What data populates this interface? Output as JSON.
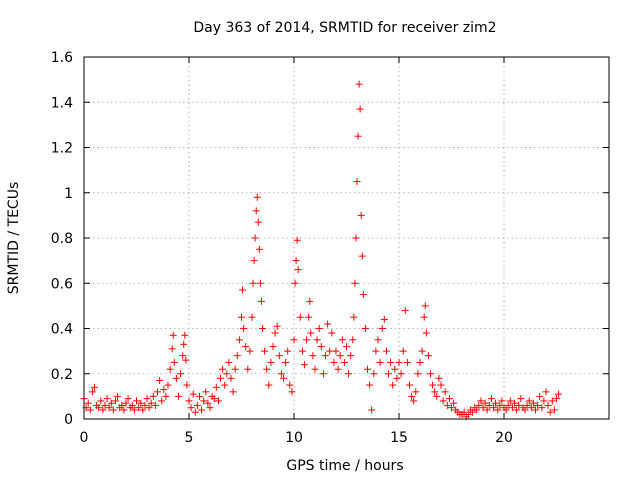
{
  "chart_data": {
    "type": "scatter",
    "title": "Day 363 of 2014, SRMTID for receiver zim2",
    "xlabel": "GPS time / hours",
    "ylabel": "SRMTID / TECUs",
    "xlim": [
      0,
      25
    ],
    "ylim": [
      0,
      1.6
    ],
    "xticks": [
      0,
      5,
      10,
      15,
      20
    ],
    "xtick_labels": [
      "0",
      "5",
      "10",
      "15",
      "20"
    ],
    "yticks": [
      0,
      0.2,
      0.4,
      0.6,
      0.8,
      1.0,
      1.2,
      1.4,
      1.6
    ],
    "ytick_labels": [
      "0",
      "0.2",
      "0.4",
      "0.6",
      "0.8",
      "1",
      "1.2",
      "1.4",
      "1.6"
    ],
    "grid": true,
    "marker": "+",
    "color": "#ff0000",
    "series": [
      {
        "name": "zim2",
        "points": [
          [
            0.0,
            0.09
          ],
          [
            0.1,
            0.05
          ],
          [
            0.2,
            0.07
          ],
          [
            0.3,
            0.04
          ],
          [
            0.4,
            0.12
          ],
          [
            0.5,
            0.14
          ],
          [
            0.6,
            0.06
          ],
          [
            0.7,
            0.05
          ],
          [
            0.8,
            0.08
          ],
          [
            0.9,
            0.04
          ],
          [
            1.0,
            0.06
          ],
          [
            1.1,
            0.09
          ],
          [
            1.2,
            0.05
          ],
          [
            1.3,
            0.07
          ],
          [
            1.4,
            0.04
          ],
          [
            1.5,
            0.08
          ],
          [
            1.6,
            0.1
          ],
          [
            1.7,
            0.05
          ],
          [
            1.8,
            0.06
          ],
          [
            1.9,
            0.04
          ],
          [
            2.0,
            0.07
          ],
          [
            2.1,
            0.09
          ],
          [
            2.2,
            0.05
          ],
          [
            2.3,
            0.06
          ],
          [
            2.4,
            0.04
          ],
          [
            2.5,
            0.08
          ],
          [
            2.6,
            0.05
          ],
          [
            2.7,
            0.07
          ],
          [
            2.8,
            0.04
          ],
          [
            2.9,
            0.06
          ],
          [
            3.0,
            0.09
          ],
          [
            3.1,
            0.05
          ],
          [
            3.2,
            0.07
          ],
          [
            3.3,
            0.1
          ],
          [
            3.4,
            0.06
          ],
          [
            3.5,
            0.12
          ],
          [
            3.6,
            0.17
          ],
          [
            3.7,
            0.08
          ],
          [
            3.8,
            0.13
          ],
          [
            3.9,
            0.1
          ],
          [
            4.0,
            0.15
          ],
          [
            4.1,
            0.22
          ],
          [
            4.2,
            0.31
          ],
          [
            4.25,
            0.37
          ],
          [
            4.3,
            0.25
          ],
          [
            4.4,
            0.18
          ],
          [
            4.5,
            0.1
          ],
          [
            4.6,
            0.2
          ],
          [
            4.7,
            0.28
          ],
          [
            4.75,
            0.33
          ],
          [
            4.8,
            0.37
          ],
          [
            4.85,
            0.26
          ],
          [
            4.9,
            0.15
          ],
          [
            5.0,
            0.08
          ],
          [
            5.1,
            0.05
          ],
          [
            5.2,
            0.11
          ],
          [
            5.3,
            0.03
          ],
          [
            5.4,
            0.06
          ],
          [
            5.5,
            0.1
          ],
          [
            5.6,
            0.04
          ],
          [
            5.7,
            0.08
          ],
          [
            5.8,
            0.12
          ],
          [
            5.9,
            0.07
          ],
          [
            6.0,
            0.05
          ],
          [
            6.1,
            0.1
          ],
          [
            6.2,
            0.09
          ],
          [
            6.3,
            0.14
          ],
          [
            6.4,
            0.08
          ],
          [
            6.5,
            0.18
          ],
          [
            6.6,
            0.22
          ],
          [
            6.7,
            0.15
          ],
          [
            6.8,
            0.2
          ],
          [
            6.9,
            0.25
          ],
          [
            7.0,
            0.18
          ],
          [
            7.1,
            0.12
          ],
          [
            7.2,
            0.22
          ],
          [
            7.3,
            0.28
          ],
          [
            7.4,
            0.35
          ],
          [
            7.5,
            0.45
          ],
          [
            7.55,
            0.57
          ],
          [
            7.6,
            0.4
          ],
          [
            7.7,
            0.32
          ],
          [
            7.8,
            0.22
          ],
          [
            7.9,
            0.3
          ],
          [
            8.0,
            0.45
          ],
          [
            8.05,
            0.6
          ],
          [
            8.1,
            0.7
          ],
          [
            8.15,
            0.8
          ],
          [
            8.2,
            0.92
          ],
          [
            8.25,
            0.98
          ],
          [
            8.3,
            0.87
          ],
          [
            8.35,
            0.75
          ],
          [
            8.4,
            0.6
          ],
          [
            8.45,
            0.52
          ],
          [
            8.5,
            0.4
          ],
          [
            8.6,
            0.3
          ],
          [
            8.7,
            0.22
          ],
          [
            8.8,
            0.15
          ],
          [
            8.9,
            0.25
          ],
          [
            9.0,
            0.32
          ],
          [
            9.1,
            0.38
          ],
          [
            9.2,
            0.41
          ],
          [
            9.3,
            0.28
          ],
          [
            9.4,
            0.2
          ],
          [
            9.5,
            0.18
          ],
          [
            9.6,
            0.25
          ],
          [
            9.7,
            0.3
          ],
          [
            9.8,
            0.15
          ],
          [
            9.9,
            0.12
          ],
          [
            10.0,
            0.35
          ],
          [
            10.05,
            0.6
          ],
          [
            10.1,
            0.7
          ],
          [
            10.15,
            0.79
          ],
          [
            10.2,
            0.66
          ],
          [
            10.3,
            0.45
          ],
          [
            10.4,
            0.3
          ],
          [
            10.5,
            0.24
          ],
          [
            10.6,
            0.35
          ],
          [
            10.7,
            0.45
          ],
          [
            10.75,
            0.52
          ],
          [
            10.8,
            0.38
          ],
          [
            10.9,
            0.28
          ],
          [
            11.0,
            0.22
          ],
          [
            11.1,
            0.35
          ],
          [
            11.2,
            0.4
          ],
          [
            11.3,
            0.32
          ],
          [
            11.4,
            0.2
          ],
          [
            11.5,
            0.28
          ],
          [
            11.6,
            0.42
          ],
          [
            11.7,
            0.3
          ],
          [
            11.8,
            0.38
          ],
          [
            11.9,
            0.25
          ],
          [
            12.0,
            0.3
          ],
          [
            12.1,
            0.22
          ],
          [
            12.2,
            0.28
          ],
          [
            12.3,
            0.35
          ],
          [
            12.4,
            0.25
          ],
          [
            12.5,
            0.32
          ],
          [
            12.6,
            0.2
          ],
          [
            12.7,
            0.28
          ],
          [
            12.8,
            0.35
          ],
          [
            12.85,
            0.45
          ],
          [
            12.9,
            0.6
          ],
          [
            12.95,
            0.8
          ],
          [
            13.0,
            1.05
          ],
          [
            13.05,
            1.25
          ],
          [
            13.1,
            1.48
          ],
          [
            13.15,
            1.37
          ],
          [
            13.2,
            0.9
          ],
          [
            13.25,
            0.72
          ],
          [
            13.3,
            0.55
          ],
          [
            13.4,
            0.4
          ],
          [
            13.5,
            0.22
          ],
          [
            13.6,
            0.15
          ],
          [
            13.7,
            0.04
          ],
          [
            13.8,
            0.2
          ],
          [
            13.9,
            0.3
          ],
          [
            14.0,
            0.35
          ],
          [
            14.1,
            0.25
          ],
          [
            14.2,
            0.4
          ],
          [
            14.3,
            0.44
          ],
          [
            14.4,
            0.3
          ],
          [
            14.5,
            0.2
          ],
          [
            14.6,
            0.25
          ],
          [
            14.7,
            0.15
          ],
          [
            14.8,
            0.22
          ],
          [
            14.9,
            0.18
          ],
          [
            15.0,
            0.25
          ],
          [
            15.1,
            0.2
          ],
          [
            15.2,
            0.3
          ],
          [
            15.3,
            0.48
          ],
          [
            15.4,
            0.25
          ],
          [
            15.5,
            0.15
          ],
          [
            15.6,
            0.1
          ],
          [
            15.7,
            0.08
          ],
          [
            15.8,
            0.12
          ],
          [
            15.9,
            0.2
          ],
          [
            16.0,
            0.25
          ],
          [
            16.1,
            0.3
          ],
          [
            16.2,
            0.45
          ],
          [
            16.25,
            0.5
          ],
          [
            16.3,
            0.38
          ],
          [
            16.4,
            0.28
          ],
          [
            16.5,
            0.2
          ],
          [
            16.6,
            0.15
          ],
          [
            16.7,
            0.12
          ],
          [
            16.8,
            0.1
          ],
          [
            16.9,
            0.18
          ],
          [
            17.0,
            0.15
          ],
          [
            17.1,
            0.08
          ],
          [
            17.2,
            0.12
          ],
          [
            17.3,
            0.06
          ],
          [
            17.4,
            0.09
          ],
          [
            17.5,
            0.05
          ],
          [
            17.6,
            0.07
          ],
          [
            17.7,
            0.04
          ],
          [
            17.8,
            0.03
          ],
          [
            17.9,
            0.02
          ],
          [
            18.0,
            0.02
          ],
          [
            18.1,
            0.03
          ],
          [
            18.2,
            0.01
          ],
          [
            18.3,
            0.02
          ],
          [
            18.4,
            0.04
          ],
          [
            18.5,
            0.03
          ],
          [
            18.6,
            0.05
          ],
          [
            18.7,
            0.04
          ],
          [
            18.8,
            0.06
          ],
          [
            18.9,
            0.08
          ],
          [
            19.0,
            0.05
          ],
          [
            19.1,
            0.07
          ],
          [
            19.2,
            0.04
          ],
          [
            19.3,
            0.06
          ],
          [
            19.4,
            0.09
          ],
          [
            19.5,
            0.05
          ],
          [
            19.6,
            0.07
          ],
          [
            19.7,
            0.04
          ],
          [
            19.8,
            0.06
          ],
          [
            19.9,
            0.08
          ],
          [
            20.0,
            0.05
          ],
          [
            20.1,
            0.04
          ],
          [
            20.2,
            0.06
          ],
          [
            20.3,
            0.08
          ],
          [
            20.4,
            0.05
          ],
          [
            20.5,
            0.07
          ],
          [
            20.6,
            0.04
          ],
          [
            20.7,
            0.06
          ],
          [
            20.8,
            0.09
          ],
          [
            20.9,
            0.05
          ],
          [
            21.0,
            0.04
          ],
          [
            21.1,
            0.06
          ],
          [
            21.2,
            0.08
          ],
          [
            21.3,
            0.05
          ],
          [
            21.4,
            0.07
          ],
          [
            21.5,
            0.04
          ],
          [
            21.6,
            0.06
          ],
          [
            21.7,
            0.1
          ],
          [
            21.8,
            0.05
          ],
          [
            21.9,
            0.08
          ],
          [
            22.0,
            0.12
          ],
          [
            22.1,
            0.06
          ],
          [
            22.2,
            0.03
          ],
          [
            22.3,
            0.08
          ],
          [
            22.4,
            0.04
          ],
          [
            22.5,
            0.09
          ],
          [
            22.6,
            0.11
          ]
        ]
      }
    ]
  }
}
